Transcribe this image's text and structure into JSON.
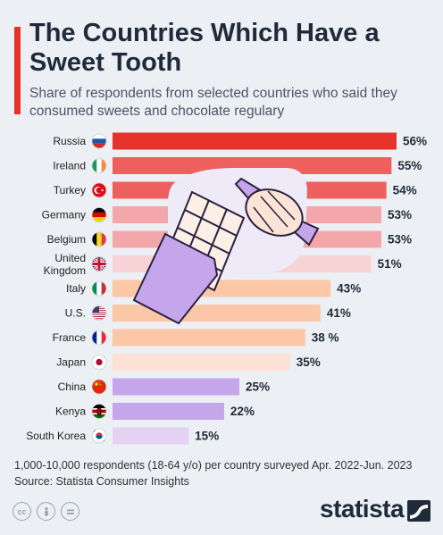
{
  "title": "The Countries Which Have a Sweet Tooth",
  "subtitle": "Share of respondents from selected countries who said they consumed sweets and chocolate regulary",
  "footnote_line1": "1,000-10,000 respondents (18-64 y/o) per country surveyed Apr. 2022-Jun. 2023",
  "footnote_line2": "Source: Statista Consumer Insights",
  "brand": "statista",
  "icons": [
    "cc-license-icon",
    "attribution-icon",
    "no-derivatives-icon",
    "chocolate-bar-illustration",
    "candy-illustration"
  ],
  "chart_data": {
    "type": "bar",
    "orientation": "horizontal",
    "categories": [
      "Russia",
      "Ireland",
      "Turkey",
      "Germany",
      "Belgium",
      "United Kingdom",
      "Italy",
      "U.S.",
      "France",
      "Japan",
      "China",
      "Kenya",
      "South Korea"
    ],
    "values": [
      56,
      55,
      54,
      53,
      53,
      51,
      43,
      41,
      38,
      35,
      25,
      22,
      15
    ],
    "value_labels": [
      "56%",
      "55%",
      "54%",
      "53%",
      "53%",
      "51%",
      "43%",
      "41%",
      "38 %",
      "35%",
      "25%",
      "22%",
      "15%"
    ],
    "bar_colors": [
      "#e7322b",
      "#ef5f5e",
      "#ef5f5e",
      "#f4a7ab",
      "#f4a7ab",
      "#f7d3d6",
      "#fbc7a6",
      "#fbc7a6",
      "#fbc7a6",
      "#fde1d5",
      "#c5a6eb",
      "#c5a6eb",
      "#e3d2f4"
    ],
    "xlim": [
      0,
      56
    ],
    "grid": false,
    "legend": "none"
  }
}
